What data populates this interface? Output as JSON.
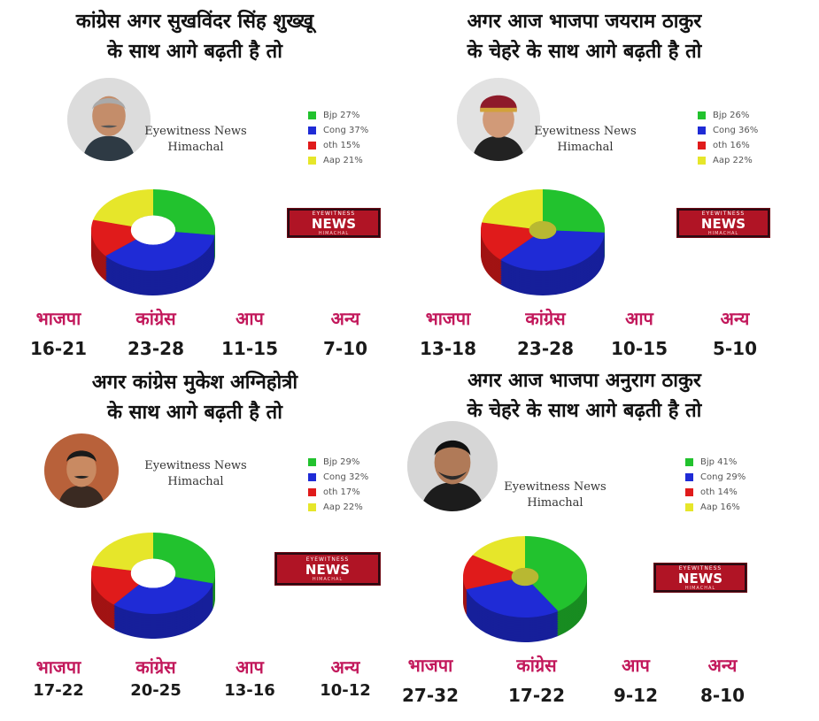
{
  "colors": {
    "bjp": "#22c22e",
    "cong": "#1f2bd6",
    "oth": "#e01b1b",
    "aap": "#e6e62a"
  },
  "badge": {
    "top": "EYEWITNESS",
    "main": "NEWS",
    "sub": "HIMACHAL"
  },
  "panels": [
    {
      "headline": [
        "कांग्रेस अगर सुखविंदर सिंह शुख्खू",
        "के साथ आगे बढ़ती है तो"
      ],
      "watermark": [
        "Eyewitness News",
        "Himachal"
      ],
      "legend": [
        "Bjp 27%",
        "Cong 37%",
        "oth 15%",
        "Aap 21%"
      ],
      "parties": [
        "भाजपा",
        "कांग्रेस",
        "आप",
        "अन्य"
      ],
      "seats": [
        "16-21",
        "23-28",
        "11-15",
        "7-10"
      ]
    },
    {
      "headline": [
        "अगर आज भाजपा जयराम ठाकुर",
        "के चेहरे के साथ आगे बढ़ती है तो"
      ],
      "watermark": [
        "Eyewitness News",
        "Himachal"
      ],
      "legend": [
        "Bjp 26%",
        "Cong 36%",
        "oth 16%",
        "Aap 22%"
      ],
      "parties": [
        "भाजपा",
        "कांग्रेस",
        "आप",
        "अन्य"
      ],
      "seats": [
        "13-18",
        "23-28",
        "10-15",
        "5-10"
      ]
    },
    {
      "headline": [
        "अगर कांग्रेस मुकेश अग्निहोत्री",
        "के साथ आगे बढ़ती है तो"
      ],
      "watermark": [
        "Eyewitness News",
        "Himachal"
      ],
      "legend": [
        "Bjp 29%",
        "Cong 32%",
        "oth 17%",
        "Aap 22%"
      ],
      "parties": [
        "भाजपा",
        "कांग्रेस",
        "आप",
        "अन्य"
      ],
      "seats": [
        "17-22",
        "20-25",
        "13-16",
        "10-12"
      ]
    },
    {
      "headline": [
        "अगर आज भाजपा अनुराग ठाकुर",
        "के चेहरे के साथ आगे बढ़ती है तो"
      ],
      "watermark": [
        "Eyewitness News",
        "Himachal"
      ],
      "legend": [
        "Bjp 41%",
        "Cong 29%",
        "oth 14%",
        "Aap 16%"
      ],
      "parties": [
        "भाजपा",
        "कांग्रेस",
        "आप",
        "अन्य"
      ],
      "seats": [
        "27-32",
        "17-22",
        "9-12",
        "8-10"
      ]
    }
  ],
  "chart_data": [
    {
      "type": "pie",
      "labels": [
        "Bjp",
        "Cong",
        "oth",
        "Aap"
      ],
      "values": [
        27,
        37,
        15,
        21
      ],
      "hole": "large"
    },
    {
      "type": "pie",
      "labels": [
        "Bjp",
        "Cong",
        "oth",
        "Aap"
      ],
      "values": [
        26,
        36,
        16,
        22
      ],
      "hole": "small"
    },
    {
      "type": "pie",
      "labels": [
        "Bjp",
        "Cong",
        "oth",
        "Aap"
      ],
      "values": [
        29,
        32,
        17,
        22
      ],
      "hole": "large"
    },
    {
      "type": "pie",
      "labels": [
        "Bjp",
        "Cong",
        "oth",
        "Aap"
      ],
      "values": [
        41,
        29,
        14,
        16
      ],
      "hole": "small"
    }
  ]
}
